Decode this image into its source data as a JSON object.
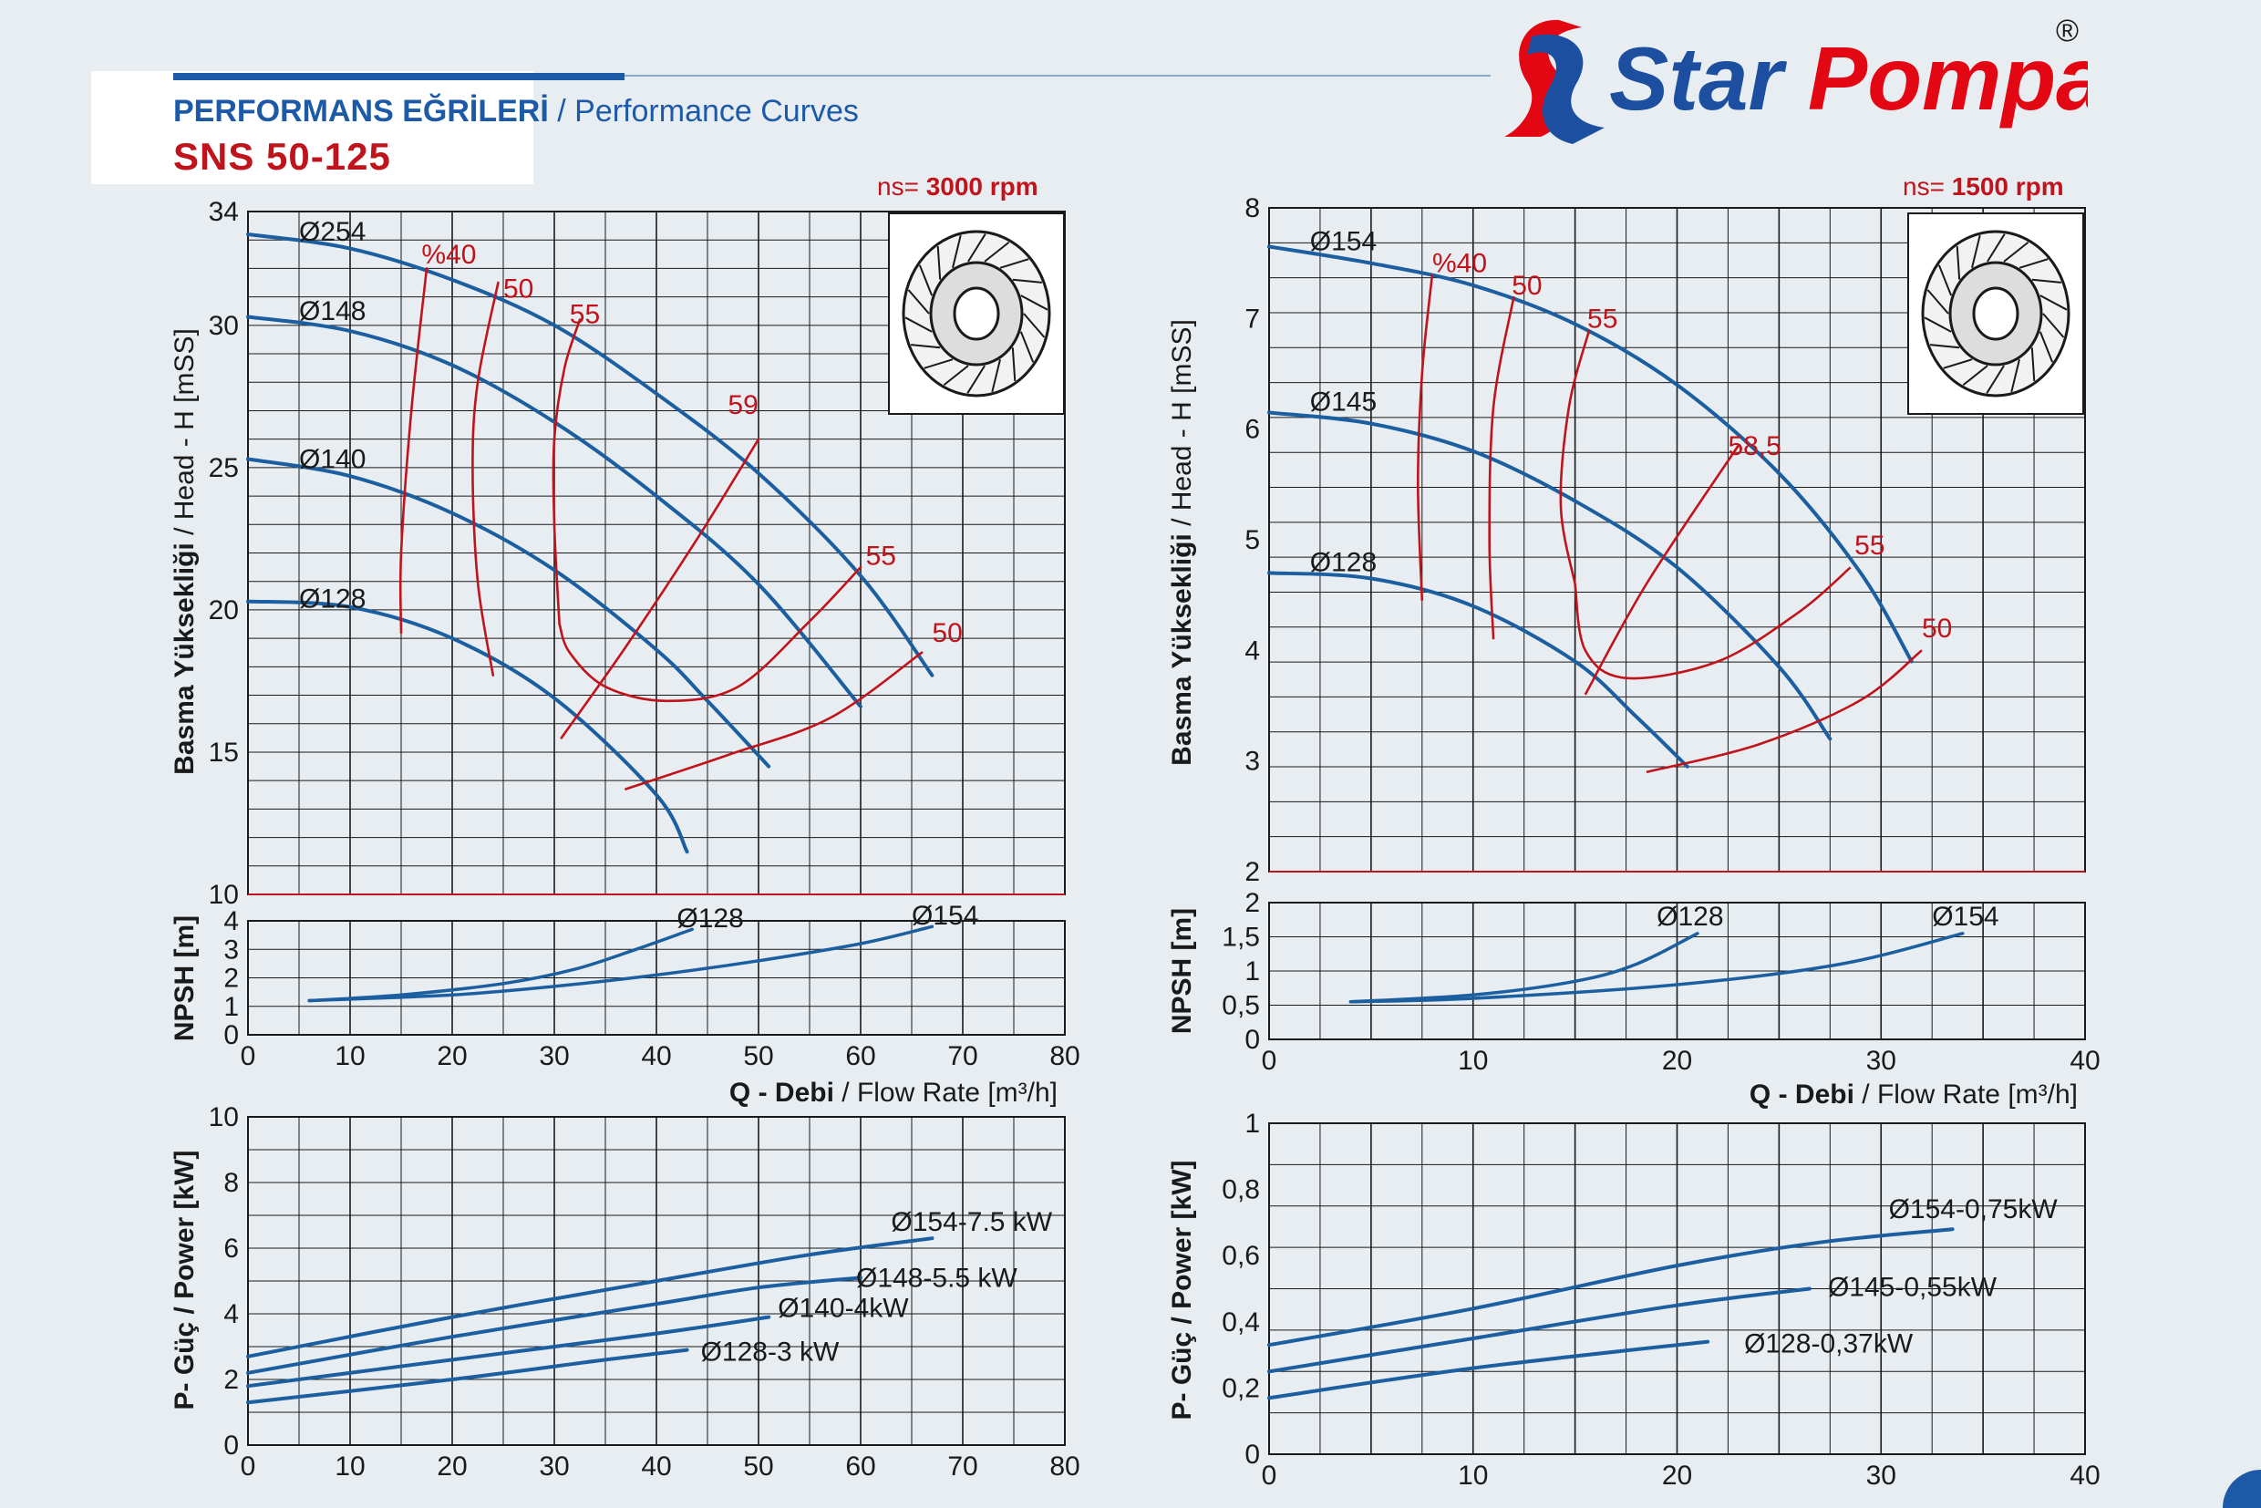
{
  "header": {
    "title_tr": "PERFORMANS EĞRİLERİ",
    "title_sep": " / ",
    "title_en": "Performance Curves",
    "model": "SNS 50-125",
    "brand": "Star Pompa",
    "registered": "®"
  },
  "colors": {
    "curve": "#1c5fa0",
    "efficiency": "#c0141c",
    "grid": "#1a1a1a",
    "brand_red": "#e30613",
    "brand_blue": "#1c4fa0"
  },
  "panels": {
    "left": {
      "speed_prefix": "ns=",
      "speed": "3000 rpm",
      "head_ylabel_bold": "Basma Yüksekliği",
      "head_ylabel_rest": " / Head - H [mSS]",
      "npsh_ylabel": "NPSH [m]",
      "xlabel_bold": "Q - Debi",
      "xlabel_rest": " / Flow Rate [m³/h]",
      "power_ylabel": "P- Güç / Power [kW]"
    },
    "right": {
      "speed_prefix": "ns=",
      "speed": "1500 rpm",
      "head_ylabel_bold": "Basma Yüksekliği",
      "head_ylabel_rest": " / Head - H [mSS]",
      "npsh_ylabel": "NPSH [m]",
      "xlabel_bold": "Q - Debi",
      "xlabel_rest": " / Flow Rate [m³/h]",
      "power_ylabel": "P- Güç / Power [kW]"
    }
  },
  "chart_data": [
    {
      "type": "line",
      "name": "head_3000",
      "xlim": [
        0,
        80
      ],
      "ylim": [
        10,
        34
      ],
      "x_ticks": [
        0,
        10,
        20,
        30,
        40,
        50,
        60,
        70,
        80
      ],
      "y_ticks": [
        {
          "v": 15,
          "t": "15"
        },
        {
          "v": 20,
          "t": "20"
        },
        {
          "v": 25,
          "t": "25"
        },
        {
          "v": 30,
          "t": "30"
        },
        {
          "v": 34,
          "t": "34"
        }
      ],
      "series": [
        {
          "name": "Ø254",
          "points": [
            [
              0,
              33.2
            ],
            [
              10,
              32.7
            ],
            [
              20,
              31.6
            ],
            [
              30,
              30.0
            ],
            [
              40,
              27.6
            ],
            [
              50,
              24.8
            ],
            [
              60,
              21.2
            ],
            [
              67,
              17.7
            ]
          ]
        },
        {
          "name": "Ø148",
          "points": [
            [
              0,
              30.3
            ],
            [
              10,
              29.8
            ],
            [
              20,
              28.6
            ],
            [
              30,
              26.6
            ],
            [
              40,
              24.0
            ],
            [
              50,
              20.9
            ],
            [
              60,
              16.6
            ]
          ]
        },
        {
          "name": "Ø140",
          "points": [
            [
              0,
              25.3
            ],
            [
              10,
              24.7
            ],
            [
              20,
              23.4
            ],
            [
              30,
              21.4
            ],
            [
              40,
              18.6
            ],
            [
              45,
              16.8
            ],
            [
              51,
              14.5
            ]
          ]
        },
        {
          "name": "Ø128",
          "points": [
            [
              0,
              20.3
            ],
            [
              10,
              20.1
            ],
            [
              20,
              19.0
            ],
            [
              30,
              16.9
            ],
            [
              40,
              13.5
            ],
            [
              43,
              11.5
            ]
          ]
        }
      ],
      "efficiency": [
        {
          "label": "%40",
          "points": [
            [
              15,
              19.2
            ],
            [
              15,
              22
            ],
            [
              16,
              27
            ],
            [
              17.5,
              32
            ]
          ]
        },
        {
          "label": "50",
          "points": [
            [
              24,
              17.7
            ],
            [
              22.5,
              21
            ],
            [
              22,
              25
            ],
            [
              22.5,
              28
            ],
            [
              24.5,
              31.5
            ]
          ]
        },
        {
          "label": "55",
          "points": [
            [
              30.5,
              19.5
            ],
            [
              30,
              23
            ],
            [
              30,
              26
            ],
            [
              31,
              28.5
            ],
            [
              32.5,
              30.2
            ]
          ]
        },
        {
          "label": "55",
          "points": [
            [
              30.5,
              19.5
            ],
            [
              31.5,
              18.5
            ],
            [
              35,
              17.3
            ],
            [
              41,
              16.8
            ],
            [
              48,
              17.3
            ],
            [
              55,
              19.6
            ],
            [
              60,
              21.5
            ]
          ]
        },
        {
          "label": "59",
          "points": [
            [
              30.7,
              15.5
            ],
            [
              37,
              18.7
            ],
            [
              44,
              22.5
            ],
            [
              50,
              26.0
            ]
          ]
        },
        {
          "label": "50",
          "points": [
            [
              37,
              13.7
            ],
            [
              47,
              14.9
            ],
            [
              57,
              16.2
            ],
            [
              66,
              18.5
            ]
          ]
        }
      ]
    },
    {
      "type": "line",
      "name": "npsh_3000",
      "xlim": [
        0,
        80
      ],
      "ylim": [
        0,
        4
      ],
      "y_ticks": [
        {
          "v": 0,
          "t": "0"
        },
        {
          "v": 1,
          "t": "1"
        },
        {
          "v": 2,
          "t": "2"
        },
        {
          "v": 3,
          "t": "3"
        },
        {
          "v": 4,
          "t": "4"
        }
      ],
      "series": [
        {
          "name": "Ø128",
          "points": [
            [
              6,
              1.2
            ],
            [
              15,
              1.4
            ],
            [
              25,
              1.8
            ],
            [
              32,
              2.3
            ],
            [
              38,
              3.0
            ],
            [
              43.5,
              3.7
            ]
          ]
        },
        {
          "name": "Ø154",
          "points": [
            [
              6,
              1.2
            ],
            [
              20,
              1.4
            ],
            [
              30,
              1.7
            ],
            [
              40,
              2.1
            ],
            [
              50,
              2.6
            ],
            [
              60,
              3.2
            ],
            [
              67,
              3.8
            ]
          ]
        }
      ]
    },
    {
      "type": "line",
      "name": "power_3000",
      "xlim": [
        0,
        80
      ],
      "ylim": [
        0,
        10
      ],
      "y_ticks": [
        {
          "v": 0,
          "t": "0"
        },
        {
          "v": 2,
          "t": "2"
        },
        {
          "v": 4,
          "t": "4"
        },
        {
          "v": 6,
          "t": "6"
        },
        {
          "v": 8,
          "t": "8"
        },
        {
          "v": 10,
          "t": "10"
        }
      ],
      "series": [
        {
          "name": "Ø154-7.5 kW",
          "points": [
            [
              0,
              2.7
            ],
            [
              20,
              3.9
            ],
            [
              40,
              5.0
            ],
            [
              55,
              5.8
            ],
            [
              67,
              6.3
            ]
          ]
        },
        {
          "name": "Ø148-5.5 kW",
          "points": [
            [
              0,
              2.2
            ],
            [
              20,
              3.3
            ],
            [
              40,
              4.3
            ],
            [
              50,
              4.8
            ],
            [
              60,
              5.1
            ]
          ]
        },
        {
          "name": "Ø140-4kW",
          "points": [
            [
              0,
              1.8
            ],
            [
              20,
              2.6
            ],
            [
              40,
              3.4
            ],
            [
              51,
              3.9
            ]
          ]
        },
        {
          "name": "Ø128-3 kW",
          "points": [
            [
              0,
              1.3
            ],
            [
              20,
              2.0
            ],
            [
              35,
              2.6
            ],
            [
              43,
              2.9
            ]
          ]
        }
      ]
    },
    {
      "type": "line",
      "name": "head_1500",
      "xlim": [
        0,
        40
      ],
      "ylim": [
        2,
        8
      ],
      "x_ticks": [
        0,
        10,
        20,
        30,
        40
      ],
      "y_ticks": [
        {
          "v": 3,
          "t": "3"
        },
        {
          "v": 4,
          "t": "4"
        },
        {
          "v": 5,
          "t": "5"
        },
        {
          "v": 6,
          "t": "6"
        },
        {
          "v": 7,
          "t": "7"
        },
        {
          "v": 8,
          "t": "8"
        }
      ],
      "series": [
        {
          "name": "Ø154",
          "points": [
            [
              0,
              7.65
            ],
            [
              5,
              7.5
            ],
            [
              10,
              7.3
            ],
            [
              15,
              6.95
            ],
            [
              20,
              6.4
            ],
            [
              25,
              5.6
            ],
            [
              29,
              4.7
            ],
            [
              31.5,
              3.9
            ]
          ]
        },
        {
          "name": "Ø145",
          "points": [
            [
              0,
              6.15
            ],
            [
              5,
              6.05
            ],
            [
              10,
              5.8
            ],
            [
              15,
              5.35
            ],
            [
              20,
              4.75
            ],
            [
              25,
              3.85
            ],
            [
              27.5,
              3.2
            ]
          ]
        },
        {
          "name": "Ø128",
          "points": [
            [
              0,
              4.7
            ],
            [
              5,
              4.65
            ],
            [
              10,
              4.4
            ],
            [
              15,
              3.9
            ],
            [
              18,
              3.4
            ],
            [
              20.5,
              2.95
            ]
          ]
        }
      ]
    },
    {
      "type": "line",
      "name": "npsh_1500",
      "xlim": [
        0,
        40
      ],
      "ylim": [
        0,
        2
      ],
      "y_ticks": [
        {
          "v": 0,
          "t": "0"
        },
        {
          "v": 0.5,
          "t": "0,5"
        },
        {
          "v": 1,
          "t": "1"
        },
        {
          "v": 1.5,
          "t": "1,5"
        },
        {
          "v": 2,
          "t": "2"
        }
      ],
      "series": [
        {
          "name": "Ø128",
          "points": [
            [
              4,
              0.55
            ],
            [
              10,
              0.65
            ],
            [
              15,
              0.85
            ],
            [
              18,
              1.1
            ],
            [
              21,
              1.55
            ]
          ]
        },
        {
          "name": "Ø154",
          "points": [
            [
              4,
              0.55
            ],
            [
              10,
              0.6
            ],
            [
              20,
              0.8
            ],
            [
              28,
              1.1
            ],
            [
              34,
              1.55
            ]
          ]
        }
      ]
    },
    {
      "type": "line",
      "name": "power_1500",
      "xlim": [
        0,
        40
      ],
      "ylim": [
        0,
        1
      ],
      "y_ticks": [
        {
          "v": 0,
          "t": "0"
        },
        {
          "v": 0.2,
          "t": "0,2"
        },
        {
          "v": 0.4,
          "t": "0,4"
        },
        {
          "v": 0.6,
          "t": "0,6"
        },
        {
          "v": 0.8,
          "t": "0,8"
        },
        {
          "v": 1,
          "t": "1"
        }
      ],
      "series": [
        {
          "name": "Ø154-0,75kW",
          "points": [
            [
              0,
              0.33
            ],
            [
              10,
              0.44
            ],
            [
              20,
              0.57
            ],
            [
              27,
              0.64
            ],
            [
              33.5,
              0.68
            ]
          ]
        },
        {
          "name": "Ø145-0,55kW",
          "points": [
            [
              0,
              0.25
            ],
            [
              10,
              0.35
            ],
            [
              20,
              0.45
            ],
            [
              26.5,
              0.5
            ]
          ]
        },
        {
          "name": "Ø128-0,37kW",
          "points": [
            [
              0,
              0.17
            ],
            [
              10,
              0.26
            ],
            [
              21.5,
              0.34
            ]
          ]
        }
      ]
    }
  ],
  "labels": {
    "left_head": [
      {
        "t": "Ø254",
        "x": 5,
        "y": 33.3
      },
      {
        "t": "Ø148",
        "x": 5,
        "y": 30.5
      },
      {
        "t": "Ø140",
        "x": 5,
        "y": 25.3
      },
      {
        "t": "Ø128",
        "x": 5,
        "y": 20.4
      },
      {
        "t": "%40",
        "x": 17,
        "y": 32.5
      },
      {
        "t": "50",
        "x": 25,
        "y": 31.3
      },
      {
        "t": "55",
        "x": 31.5,
        "y": 30.4
      },
      {
        "t": "59",
        "x": 47,
        "y": 27.2
      },
      {
        "t": "55",
        "x": 60.5,
        "y": 21.9
      },
      {
        "t": "50",
        "x": 67,
        "y": 19.2
      }
    ],
    "left_npsh": [
      {
        "t": "Ø128",
        "x": 42,
        "y": 4.1
      },
      {
        "t": "Ø154",
        "x": 65,
        "y": 4.2
      }
    ],
    "right_head": [
      {
        "t": "Ø154",
        "x": 2,
        "y": 7.7
      },
      {
        "t": "Ø145",
        "x": 2,
        "y": 6.25
      },
      {
        "t": "Ø128",
        "x": 2,
        "y": 4.8
      },
      {
        "t": "%40",
        "x": 8,
        "y": 7.5
      },
      {
        "t": "50",
        "x": 11.9,
        "y": 7.3
      },
      {
        "t": "55",
        "x": 15.6,
        "y": 7.0
      },
      {
        "t": "58,5",
        "x": 22.5,
        "y": 5.85
      },
      {
        "t": "55",
        "x": 28.7,
        "y": 4.95
      },
      {
        "t": "50",
        "x": 32,
        "y": 4.2
      }
    ],
    "right_npsh": [
      {
        "t": "Ø128",
        "x": 19,
        "y": 1.8
      },
      {
        "t": "Ø154",
        "x": 32.5,
        "y": 1.8
      }
    ]
  }
}
